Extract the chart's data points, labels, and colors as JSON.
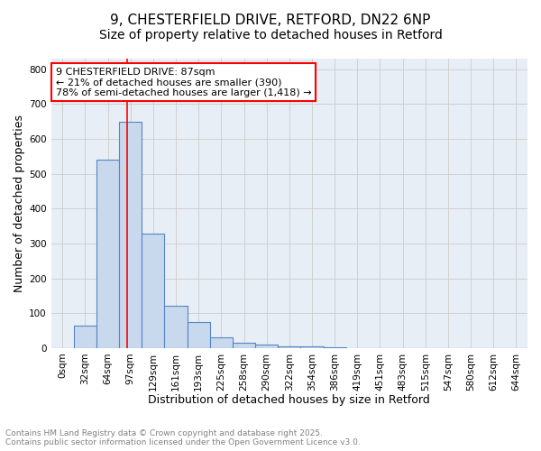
{
  "title_line1": "9, CHESTERFIELD DRIVE, RETFORD, DN22 6NP",
  "title_line2": "Size of property relative to detached houses in Retford",
  "xlabel": "Distribution of detached houses by size in Retford",
  "ylabel": "Number of detached properties",
  "bar_labels": [
    "0sqm",
    "32sqm",
    "64sqm",
    "97sqm",
    "129sqm",
    "161sqm",
    "193sqm",
    "225sqm",
    "258sqm",
    "290sqm",
    "322sqm",
    "354sqm",
    "386sqm",
    "419sqm",
    "451sqm",
    "483sqm",
    "515sqm",
    "547sqm",
    "580sqm",
    "612sqm",
    "644sqm"
  ],
  "bar_values": [
    0,
    65,
    540,
    648,
    328,
    120,
    75,
    30,
    15,
    10,
    5,
    5,
    2,
    0,
    0,
    0,
    0,
    0,
    0,
    0,
    0
  ],
  "bar_color": "#c8d8ed",
  "bar_edge_color": "#5585c5",
  "vline_color": "red",
  "annotation_text": "9 CHESTERFIELD DRIVE: 87sqm\n← 21% of detached houses are smaller (390)\n78% of semi-detached houses are larger (1,418) →",
  "annotation_box_color": "white",
  "annotation_box_edgecolor": "red",
  "ylim": [
    0,
    830
  ],
  "yticks": [
    0,
    100,
    200,
    300,
    400,
    500,
    600,
    700,
    800
  ],
  "grid_color": "#cccccc",
  "bg_color": "#ffffff",
  "plot_bg_color": "#e8eef5",
  "footer_line1": "Contains HM Land Registry data © Crown copyright and database right 2025.",
  "footer_line2": "Contains public sector information licensed under the Open Government Licence v3.0.",
  "title_fontsize": 11,
  "subtitle_fontsize": 10,
  "tick_fontsize": 7.5,
  "axis_label_fontsize": 9,
  "annotation_fontsize": 8,
  "footer_fontsize": 6.5
}
